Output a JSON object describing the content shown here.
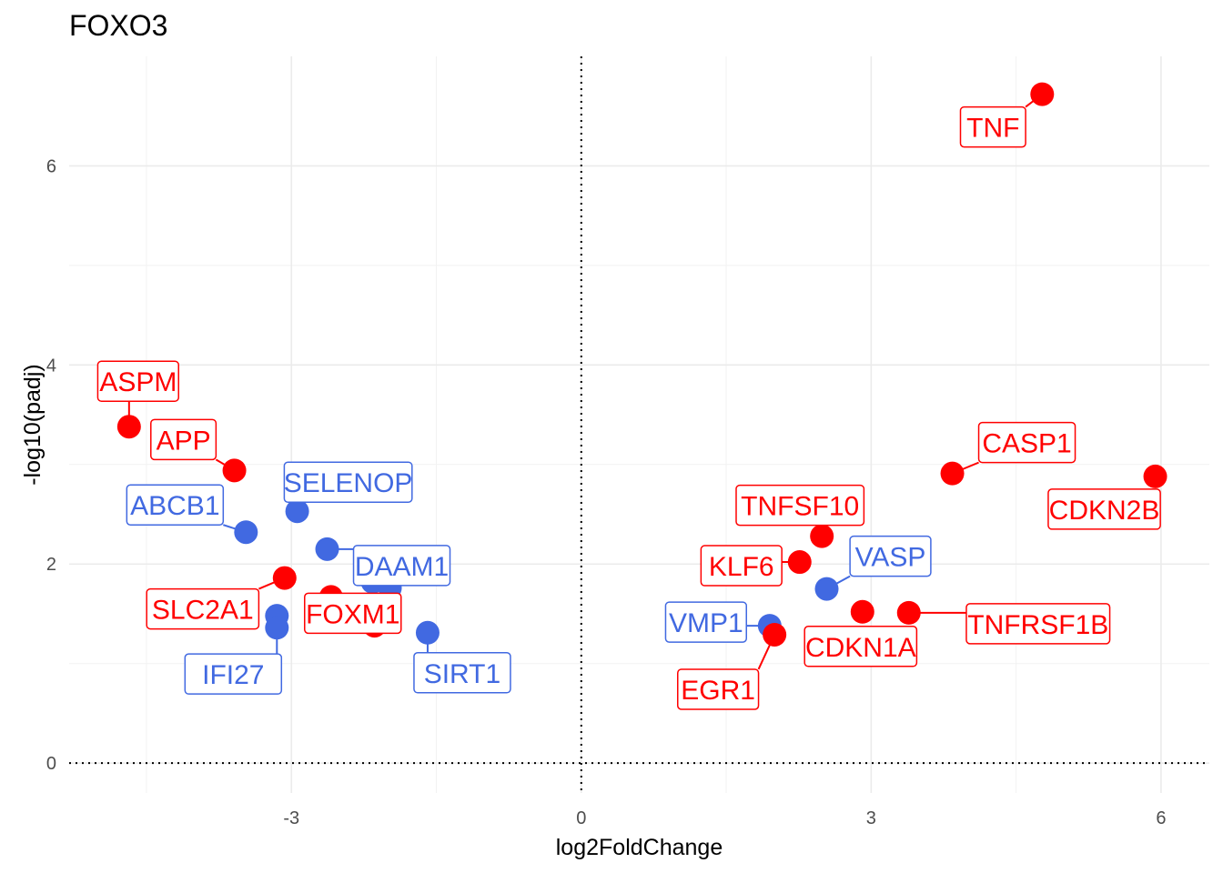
{
  "chart_data": {
    "type": "scatter",
    "title": "FOXO3",
    "xlabel": "log2FoldChange",
    "ylabel": "-log10(padj)",
    "xlim": [
      -5.3,
      6.5
    ],
    "ylim": [
      -0.3,
      7.1
    ],
    "x_ticks": [
      -3,
      0,
      3,
      6
    ],
    "x_tick_labels": [
      "-3",
      "0",
      "3",
      "6"
    ],
    "y_ticks": [
      0,
      2,
      4,
      6
    ],
    "y_tick_labels": [
      "0",
      "2",
      "4",
      "6"
    ],
    "grid": true,
    "reference_lines": {
      "x": 0,
      "y": 0,
      "style": "dotted"
    },
    "legend": "none",
    "colors": {
      "up": "#ff0000",
      "down": "#4169e1"
    },
    "points": [
      {
        "gene": "ASPM",
        "x": -4.68,
        "y": 3.38,
        "group": "up"
      },
      {
        "gene": "APP",
        "x": -3.59,
        "y": 2.94,
        "group": "up"
      },
      {
        "gene": "ABCB1",
        "x": -3.47,
        "y": 2.32,
        "group": "down"
      },
      {
        "gene": "SELENOP",
        "x": -2.94,
        "y": 2.53,
        "group": "down"
      },
      {
        "gene": "DAAM1",
        "x": -2.63,
        "y": 2.15,
        "group": "down"
      },
      {
        "gene": "SLC2A1",
        "x": -3.07,
        "y": 1.86,
        "group": "up"
      },
      {
        "gene": "FOXM1",
        "x": -2.59,
        "y": 1.67,
        "group": "up"
      },
      {
        "gene": "",
        "x": -2.14,
        "y": 1.38,
        "group": "up"
      },
      {
        "gene": "",
        "x": -2.16,
        "y": 1.82,
        "group": "down"
      },
      {
        "gene": "",
        "x": -1.98,
        "y": 1.76,
        "group": "down"
      },
      {
        "gene": "IFI27",
        "x": -3.15,
        "y": 1.48,
        "group": "down"
      },
      {
        "gene": "",
        "x": -3.15,
        "y": 1.36,
        "group": "down"
      },
      {
        "gene": "SIRT1",
        "x": -1.59,
        "y": 1.31,
        "group": "down"
      },
      {
        "gene": "TNF",
        "x": 4.77,
        "y": 6.72,
        "group": "up"
      },
      {
        "gene": "CASP1",
        "x": 3.84,
        "y": 2.91,
        "group": "up"
      },
      {
        "gene": "CDKN2B",
        "x": 5.94,
        "y": 2.88,
        "group": "up"
      },
      {
        "gene": "TNFSF10",
        "x": 2.49,
        "y": 2.28,
        "group": "up"
      },
      {
        "gene": "KLF6",
        "x": 2.26,
        "y": 2.02,
        "group": "up"
      },
      {
        "gene": "VASP",
        "x": 2.54,
        "y": 1.75,
        "group": "down"
      },
      {
        "gene": "TNFRSF1B",
        "x": 3.39,
        "y": 1.51,
        "group": "up"
      },
      {
        "gene": "CDKN1A",
        "x": 2.91,
        "y": 1.52,
        "group": "up"
      },
      {
        "gene": "VMP1",
        "x": 1.95,
        "y": 1.38,
        "group": "down"
      },
      {
        "gene": "EGR1",
        "x": 2.0,
        "y": 1.29,
        "group": "up"
      }
    ]
  }
}
